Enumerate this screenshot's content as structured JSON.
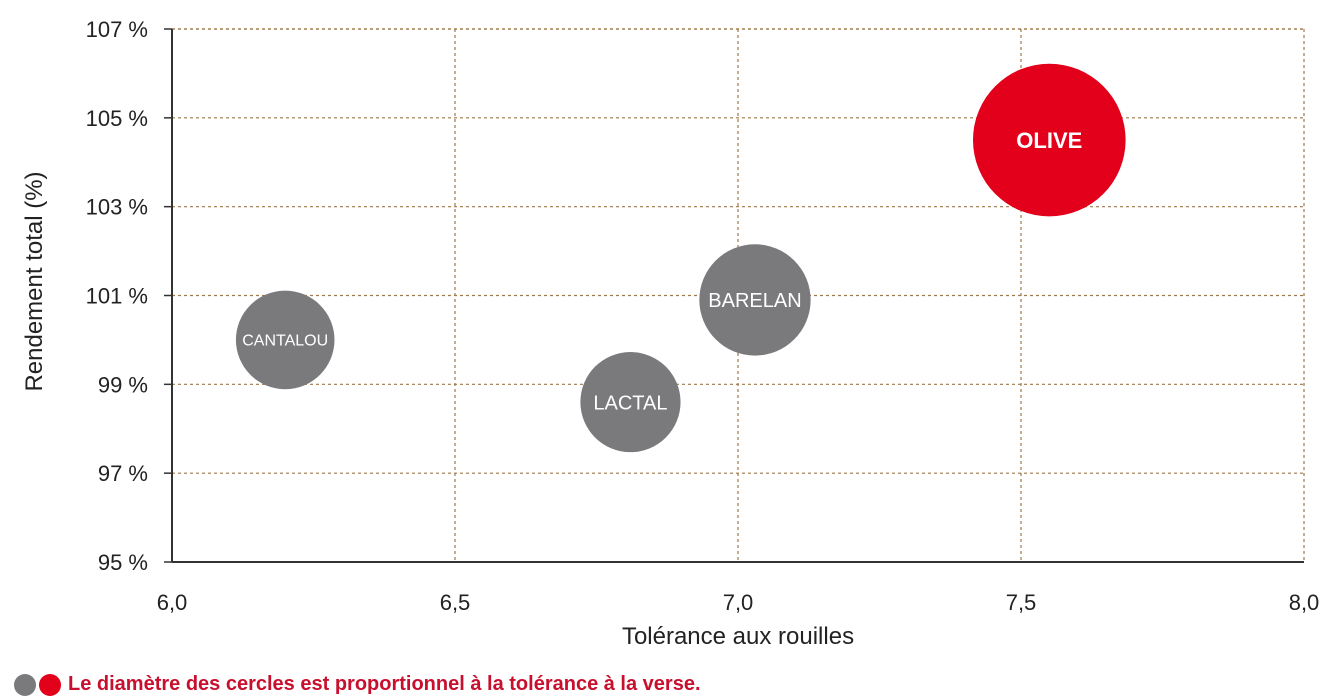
{
  "colors": {
    "grey": "#7a797c",
    "red": "#e2001a",
    "grid": "#a0784a",
    "axis": "#333333"
  },
  "chart_data": {
    "type": "scatter",
    "xlabel": "Tolérance aux rouilles",
    "ylabel": "Rendement total (%)",
    "xlim": [
      6.0,
      8.0
    ],
    "ylim": [
      95,
      107
    ],
    "x_ticks": [
      "6,0",
      "6,5",
      "7,0",
      "7,5",
      "8,0"
    ],
    "y_ticks": [
      "95 %",
      "97 %",
      "99 %",
      "101 %",
      "103 %",
      "105 %",
      "107 %"
    ],
    "grid": true,
    "series": [
      {
        "points": [
          {
            "label": "CANTALOU",
            "x": 6.2,
            "y": 100.0,
            "size": 6.2,
            "color": "grey"
          },
          {
            "label": "LACTAL",
            "x": 6.81,
            "y": 98.6,
            "size": 6.3,
            "color": "grey"
          },
          {
            "label": "BARELAN",
            "x": 7.03,
            "y": 100.9,
            "size": 7.0,
            "color": "grey"
          },
          {
            "label": "OLIVE",
            "x": 7.55,
            "y": 104.5,
            "size": 9.6,
            "color": "red"
          }
        ]
      }
    ]
  },
  "legend_note": "Le diamètre des cercles est proportionnel à la tolérance à la verse."
}
